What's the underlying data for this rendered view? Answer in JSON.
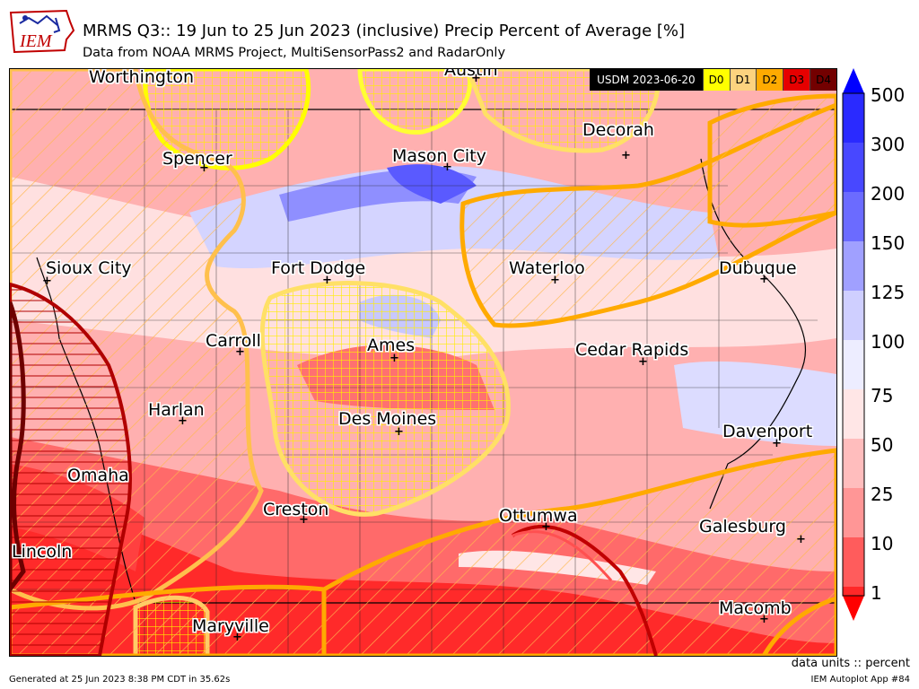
{
  "header": {
    "logo_text": "IEM",
    "title": "MRMS Q3:: 19 Jun to 25 Jun 2023 (inclusive) Precip Percent of Average [%]",
    "subtitle": "Data from NOAA MRMS Project, MultiSensorPass2 and RadarOnly"
  },
  "usdm_legend": {
    "label": "USDM 2023-06-20",
    "categories": [
      {
        "name": "D0",
        "color": "#ffff00"
      },
      {
        "name": "D1",
        "color": "#fcd37f"
      },
      {
        "name": "D2",
        "color": "#ffaa00"
      },
      {
        "name": "D3",
        "color": "#e60000"
      },
      {
        "name": "D4",
        "color": "#730000"
      }
    ]
  },
  "cities": [
    {
      "name": "Worthington"
    },
    {
      "name": "Austin"
    },
    {
      "name": "Decorah"
    },
    {
      "name": "Spencer"
    },
    {
      "name": "Mason City"
    },
    {
      "name": "Sioux City"
    },
    {
      "name": "Fort Dodge"
    },
    {
      "name": "Waterloo"
    },
    {
      "name": "Dubuque"
    },
    {
      "name": "Carroll"
    },
    {
      "name": "Ames"
    },
    {
      "name": "Cedar Rapids"
    },
    {
      "name": "Harlan"
    },
    {
      "name": "Des Moines"
    },
    {
      "name": "Davenport"
    },
    {
      "name": "Omaha"
    },
    {
      "name": "Creston"
    },
    {
      "name": "Ottumwa"
    },
    {
      "name": "Galesburg"
    },
    {
      "name": "Lincoln"
    },
    {
      "name": "Maryville"
    },
    {
      "name": "Macomb"
    }
  ],
  "colorbar": {
    "ticks": [
      "500",
      "300",
      "200",
      "150",
      "125",
      "100",
      "75",
      "50",
      "25",
      "10",
      "1"
    ],
    "colors": [
      "#0000ff",
      "#2a2aff",
      "#5c5cff",
      "#8d8dff",
      "#bdbdff",
      "#ebebff",
      "#ffe6e6",
      "#ffbebe",
      "#ff9696",
      "#ff6464",
      "#ff2828"
    ]
  },
  "units": "data units :: percent",
  "footer": {
    "generated": "Generated at 25 Jun 2023 8:38 PM CDT in 35.62s",
    "app": "IEM Autoplot App #84"
  }
}
